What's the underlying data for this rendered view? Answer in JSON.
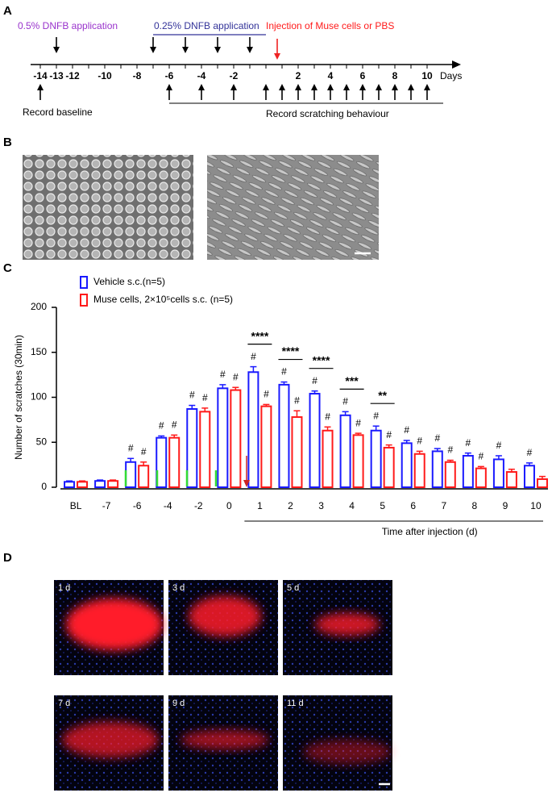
{
  "panel_a": {
    "label": "A",
    "first_application": "0.5% DNFB application",
    "second_application": "0.25% DNFB application",
    "injection": "Injection of Muse cells or PBS",
    "days": [
      -14,
      -13,
      -12,
      -10,
      -8,
      -6,
      -4,
      -2,
      2,
      4,
      6,
      8,
      10
    ],
    "axis_unit": "Days",
    "baseline": "Record baseline",
    "scratching": "Record scratching behaviour"
  },
  "panel_b": {
    "label": "B"
  },
  "panel_c": {
    "label": "C"
  },
  "chart_data": {
    "type": "bar",
    "y_label": "Number of scratches (30min)",
    "x_label": "Time after injection (d)",
    "categories": [
      "BL",
      "-7",
      "-6",
      "-4",
      "-2",
      "0",
      "1",
      "2",
      "3",
      "4",
      "5",
      "6",
      "7",
      "8",
      "9",
      "10"
    ],
    "series": [
      {
        "name": "Vehicle s.c.(n=5)",
        "color": "#1a1aff",
        "values": [
          6,
          7,
          28,
          55,
          87,
          110,
          128,
          114,
          104,
          80,
          63,
          49,
          40,
          35,
          31,
          24
        ],
        "errors": [
          1,
          1,
          4,
          2,
          4,
          4,
          6,
          3,
          3,
          4,
          5,
          3,
          3,
          3,
          4,
          3
        ],
        "labels": [
          null,
          null,
          "#",
          "#",
          "#",
          "#",
          "#",
          "#",
          "#",
          "#",
          "#",
          "#",
          "#",
          "#",
          "#",
          "#"
        ]
      },
      {
        "name": "Muse cells, 2×10⁵cells s.c. (n=5)",
        "color": "#ff1a1a",
        "values": [
          6,
          7,
          24,
          55,
          84,
          108,
          90,
          78,
          63,
          58,
          44,
          37,
          28,
          21,
          17,
          9
        ],
        "errors": [
          1,
          1,
          4,
          3,
          4,
          3,
          2,
          7,
          4,
          2,
          3,
          3,
          2,
          2,
          3,
          3
        ],
        "labels": [
          null,
          null,
          "#",
          "#",
          "#",
          "#",
          "#",
          "#",
          "#",
          "#",
          "#",
          "#",
          "#",
          "#",
          null,
          null
        ]
      }
    ],
    "significance_labels": [
      null,
      null,
      null,
      null,
      null,
      null,
      "****",
      "****",
      "****",
      "***",
      "**",
      null,
      null,
      null,
      null,
      null
    ],
    "ylim": [
      0,
      200
    ],
    "yticks": [
      0,
      50,
      100,
      150,
      200
    ]
  },
  "panel_d": {
    "label": "D",
    "timepoints": [
      "1 d",
      "3 d",
      "5 d",
      "7 d",
      "9 d",
      "11 d"
    ]
  }
}
